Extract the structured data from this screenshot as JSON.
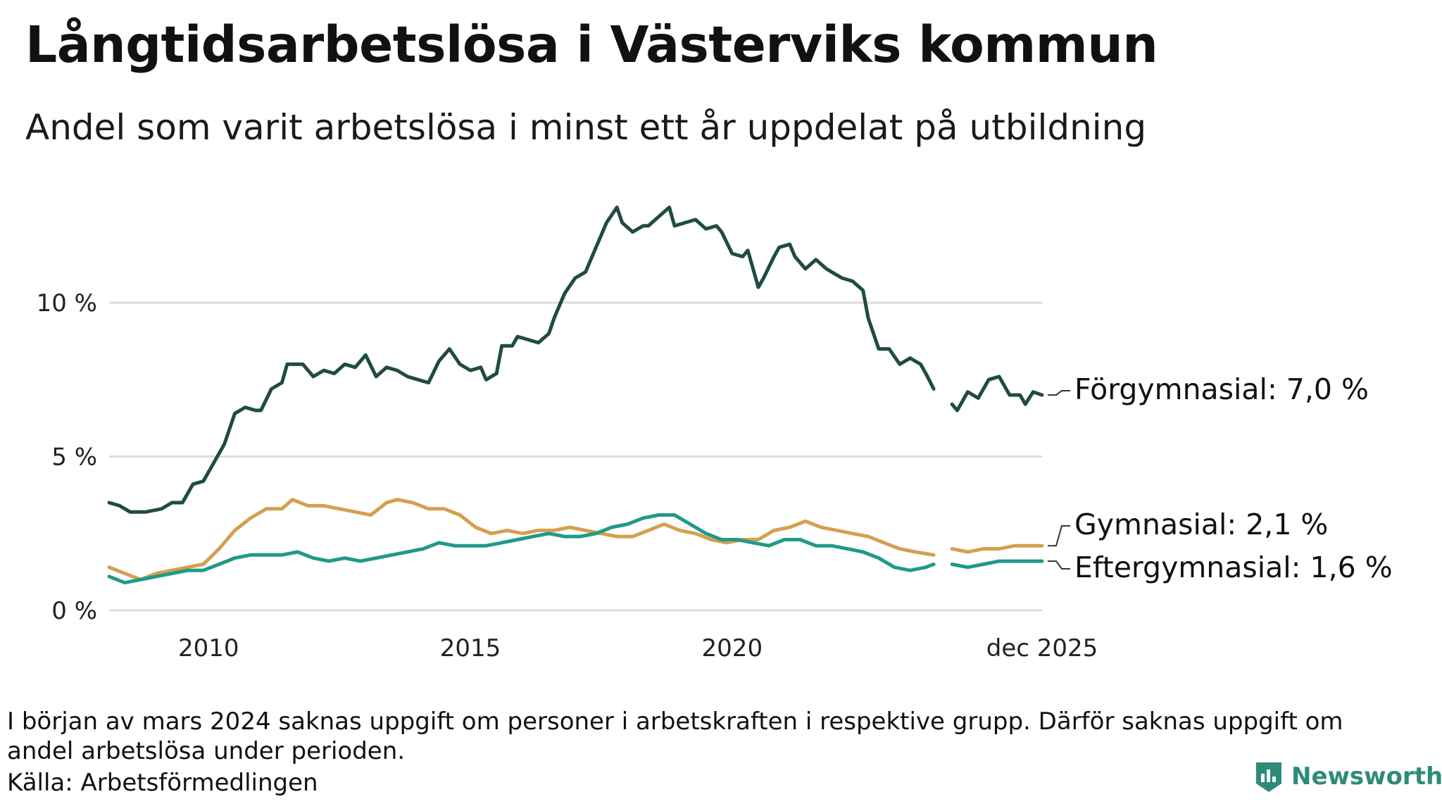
{
  "title": "Långtidsarbetslösa i Västerviks kommun",
  "subtitle": "Andel som varit arbetslösa i minst ett år uppdelat på utbildning",
  "footnote": "I början av mars 2024 saknas uppgift om personer i arbetskraften i respektive grupp. Därför saknas uppgift om andel arbetslösa under perioden.",
  "source": "Källa: Arbetsförmedlingen",
  "brand": "Newsworthy",
  "chart_data": {
    "type": "line",
    "title": "Långtidsarbetslösa i Västerviks kommun",
    "xlabel": "",
    "ylabel": "",
    "x_range": [
      2008.1,
      2025.92
    ],
    "ylim": [
      0,
      13.5
    ],
    "grid": true,
    "y_ticks": [
      {
        "value": 0,
        "label": "0 %"
      },
      {
        "value": 5,
        "label": "5 %"
      },
      {
        "value": 10,
        "label": "10 %"
      }
    ],
    "x_ticks": [
      {
        "value": 2010,
        "label": "2010"
      },
      {
        "value": 2015,
        "label": "2015"
      },
      {
        "value": 2020,
        "label": "2020"
      },
      {
        "value": 2025.92,
        "label": "dec 2025"
      }
    ],
    "gap": [
      2023.85,
      2024.2
    ],
    "series": [
      {
        "name": "Förgymnasial",
        "label": "Förgymnasial: 7,0 %",
        "color": "#1f4b43",
        "points": [
          [
            2008.1,
            3.5
          ],
          [
            2008.3,
            3.4
          ],
          [
            2008.5,
            3.2
          ],
          [
            2008.8,
            3.2
          ],
          [
            2009.1,
            3.3
          ],
          [
            2009.3,
            3.5
          ],
          [
            2009.5,
            3.5
          ],
          [
            2009.7,
            4.1
          ],
          [
            2009.9,
            4.2
          ],
          [
            2010.1,
            4.8
          ],
          [
            2010.3,
            5.4
          ],
          [
            2010.5,
            6.4
          ],
          [
            2010.7,
            6.6
          ],
          [
            2010.9,
            6.5
          ],
          [
            2011.0,
            6.5
          ],
          [
            2011.2,
            7.2
          ],
          [
            2011.4,
            7.4
          ],
          [
            2011.5,
            8.0
          ],
          [
            2011.8,
            8.0
          ],
          [
            2012.0,
            7.6
          ],
          [
            2012.2,
            7.8
          ],
          [
            2012.4,
            7.7
          ],
          [
            2012.6,
            8.0
          ],
          [
            2012.8,
            7.9
          ],
          [
            2013.0,
            8.3
          ],
          [
            2013.2,
            7.6
          ],
          [
            2013.4,
            7.9
          ],
          [
            2013.6,
            7.8
          ],
          [
            2013.8,
            7.6
          ],
          [
            2014.0,
            7.5
          ],
          [
            2014.2,
            7.4
          ],
          [
            2014.4,
            8.1
          ],
          [
            2014.6,
            8.5
          ],
          [
            2014.8,
            8.0
          ],
          [
            2015.0,
            7.8
          ],
          [
            2015.2,
            7.9
          ],
          [
            2015.3,
            7.5
          ],
          [
            2015.5,
            7.7
          ],
          [
            2015.6,
            8.6
          ],
          [
            2015.8,
            8.6
          ],
          [
            2015.9,
            8.9
          ],
          [
            2016.1,
            8.8
          ],
          [
            2016.3,
            8.7
          ],
          [
            2016.5,
            9.0
          ],
          [
            2016.6,
            9.5
          ],
          [
            2016.8,
            10.3
          ],
          [
            2017.0,
            10.8
          ],
          [
            2017.2,
            11.0
          ],
          [
            2017.4,
            11.8
          ],
          [
            2017.6,
            12.6
          ],
          [
            2017.8,
            13.1
          ],
          [
            2017.9,
            12.6
          ],
          [
            2018.1,
            12.3
          ],
          [
            2018.3,
            12.5
          ],
          [
            2018.4,
            12.5
          ],
          [
            2018.6,
            12.8
          ],
          [
            2018.8,
            13.1
          ],
          [
            2018.9,
            12.5
          ],
          [
            2019.1,
            12.6
          ],
          [
            2019.3,
            12.7
          ],
          [
            2019.5,
            12.4
          ],
          [
            2019.7,
            12.5
          ],
          [
            2019.8,
            12.3
          ],
          [
            2020.0,
            11.6
          ],
          [
            2020.2,
            11.5
          ],
          [
            2020.3,
            11.7
          ],
          [
            2020.5,
            10.5
          ],
          [
            2020.6,
            10.8
          ],
          [
            2020.8,
            11.5
          ],
          [
            2020.9,
            11.8
          ],
          [
            2021.1,
            11.9
          ],
          [
            2021.2,
            11.5
          ],
          [
            2021.4,
            11.1
          ],
          [
            2021.6,
            11.4
          ],
          [
            2021.8,
            11.1
          ],
          [
            2021.9,
            11.0
          ],
          [
            2022.1,
            10.8
          ],
          [
            2022.3,
            10.7
          ],
          [
            2022.5,
            10.4
          ],
          [
            2022.6,
            9.5
          ],
          [
            2022.8,
            8.5
          ],
          [
            2023.0,
            8.5
          ],
          [
            2023.2,
            8.0
          ],
          [
            2023.4,
            8.2
          ],
          [
            2023.6,
            8.0
          ],
          [
            2023.7,
            7.7
          ],
          [
            2023.85,
            7.2
          ],
          [
            2024.2,
            6.7
          ],
          [
            2024.3,
            6.5
          ],
          [
            2024.5,
            7.1
          ],
          [
            2024.7,
            6.9
          ],
          [
            2024.9,
            7.5
          ],
          [
            2025.1,
            7.6
          ],
          [
            2025.3,
            7.0
          ],
          [
            2025.5,
            7.0
          ],
          [
            2025.6,
            6.7
          ],
          [
            2025.75,
            7.1
          ],
          [
            2025.92,
            7.0
          ]
        ]
      },
      {
        "name": "Gymnasial",
        "label": "Gymnasial: 2,1 %",
        "color": "#d4a04f",
        "points": [
          [
            2008.1,
            1.4
          ],
          [
            2008.4,
            1.2
          ],
          [
            2008.7,
            1.0
          ],
          [
            2009.0,
            1.2
          ],
          [
            2009.3,
            1.3
          ],
          [
            2009.6,
            1.4
          ],
          [
            2009.9,
            1.5
          ],
          [
            2010.2,
            2.0
          ],
          [
            2010.5,
            2.6
          ],
          [
            2010.8,
            3.0
          ],
          [
            2011.1,
            3.3
          ],
          [
            2011.4,
            3.3
          ],
          [
            2011.6,
            3.6
          ],
          [
            2011.9,
            3.4
          ],
          [
            2012.2,
            3.4
          ],
          [
            2012.5,
            3.3
          ],
          [
            2012.8,
            3.2
          ],
          [
            2013.1,
            3.1
          ],
          [
            2013.4,
            3.5
          ],
          [
            2013.6,
            3.6
          ],
          [
            2013.9,
            3.5
          ],
          [
            2014.2,
            3.3
          ],
          [
            2014.5,
            3.3
          ],
          [
            2014.8,
            3.1
          ],
          [
            2015.1,
            2.7
          ],
          [
            2015.4,
            2.5
          ],
          [
            2015.7,
            2.6
          ],
          [
            2016.0,
            2.5
          ],
          [
            2016.3,
            2.6
          ],
          [
            2016.6,
            2.6
          ],
          [
            2016.9,
            2.7
          ],
          [
            2017.2,
            2.6
          ],
          [
            2017.5,
            2.5
          ],
          [
            2017.8,
            2.4
          ],
          [
            2018.1,
            2.4
          ],
          [
            2018.4,
            2.6
          ],
          [
            2018.7,
            2.8
          ],
          [
            2019.0,
            2.6
          ],
          [
            2019.3,
            2.5
          ],
          [
            2019.6,
            2.3
          ],
          [
            2019.9,
            2.2
          ],
          [
            2020.2,
            2.3
          ],
          [
            2020.5,
            2.3
          ],
          [
            2020.8,
            2.6
          ],
          [
            2021.1,
            2.7
          ],
          [
            2021.4,
            2.9
          ],
          [
            2021.7,
            2.7
          ],
          [
            2022.0,
            2.6
          ],
          [
            2022.3,
            2.5
          ],
          [
            2022.6,
            2.4
          ],
          [
            2022.9,
            2.2
          ],
          [
            2023.2,
            2.0
          ],
          [
            2023.5,
            1.9
          ],
          [
            2023.85,
            1.8
          ],
          [
            2024.2,
            2.0
          ],
          [
            2024.5,
            1.9
          ],
          [
            2024.8,
            2.0
          ],
          [
            2025.1,
            2.0
          ],
          [
            2025.4,
            2.1
          ],
          [
            2025.7,
            2.1
          ],
          [
            2025.92,
            2.1
          ]
        ]
      },
      {
        "name": "Eftergymnasial",
        "label": "Eftergymnasial: 1,6 %",
        "color": "#1f9a86",
        "points": [
          [
            2008.1,
            1.1
          ],
          [
            2008.4,
            0.9
          ],
          [
            2008.7,
            1.0
          ],
          [
            2009.0,
            1.1
          ],
          [
            2009.3,
            1.2
          ],
          [
            2009.6,
            1.3
          ],
          [
            2009.9,
            1.3
          ],
          [
            2010.2,
            1.5
          ],
          [
            2010.5,
            1.7
          ],
          [
            2010.8,
            1.8
          ],
          [
            2011.1,
            1.8
          ],
          [
            2011.4,
            1.8
          ],
          [
            2011.7,
            1.9
          ],
          [
            2012.0,
            1.7
          ],
          [
            2012.3,
            1.6
          ],
          [
            2012.6,
            1.7
          ],
          [
            2012.9,
            1.6
          ],
          [
            2013.2,
            1.7
          ],
          [
            2013.5,
            1.8
          ],
          [
            2013.8,
            1.9
          ],
          [
            2014.1,
            2.0
          ],
          [
            2014.4,
            2.2
          ],
          [
            2014.7,
            2.1
          ],
          [
            2015.0,
            2.1
          ],
          [
            2015.3,
            2.1
          ],
          [
            2015.6,
            2.2
          ],
          [
            2015.9,
            2.3
          ],
          [
            2016.2,
            2.4
          ],
          [
            2016.5,
            2.5
          ],
          [
            2016.8,
            2.4
          ],
          [
            2017.1,
            2.4
          ],
          [
            2017.4,
            2.5
          ],
          [
            2017.7,
            2.7
          ],
          [
            2018.0,
            2.8
          ],
          [
            2018.3,
            3.0
          ],
          [
            2018.6,
            3.1
          ],
          [
            2018.9,
            3.1
          ],
          [
            2019.2,
            2.8
          ],
          [
            2019.5,
            2.5
          ],
          [
            2019.8,
            2.3
          ],
          [
            2020.1,
            2.3
          ],
          [
            2020.4,
            2.2
          ],
          [
            2020.7,
            2.1
          ],
          [
            2021.0,
            2.3
          ],
          [
            2021.3,
            2.3
          ],
          [
            2021.6,
            2.1
          ],
          [
            2021.9,
            2.1
          ],
          [
            2022.2,
            2.0
          ],
          [
            2022.5,
            1.9
          ],
          [
            2022.8,
            1.7
          ],
          [
            2023.1,
            1.4
          ],
          [
            2023.4,
            1.3
          ],
          [
            2023.7,
            1.4
          ],
          [
            2023.85,
            1.5
          ],
          [
            2024.2,
            1.5
          ],
          [
            2024.5,
            1.4
          ],
          [
            2024.8,
            1.5
          ],
          [
            2025.1,
            1.6
          ],
          [
            2025.4,
            1.6
          ],
          [
            2025.7,
            1.6
          ],
          [
            2025.92,
            1.6
          ]
        ]
      }
    ]
  }
}
